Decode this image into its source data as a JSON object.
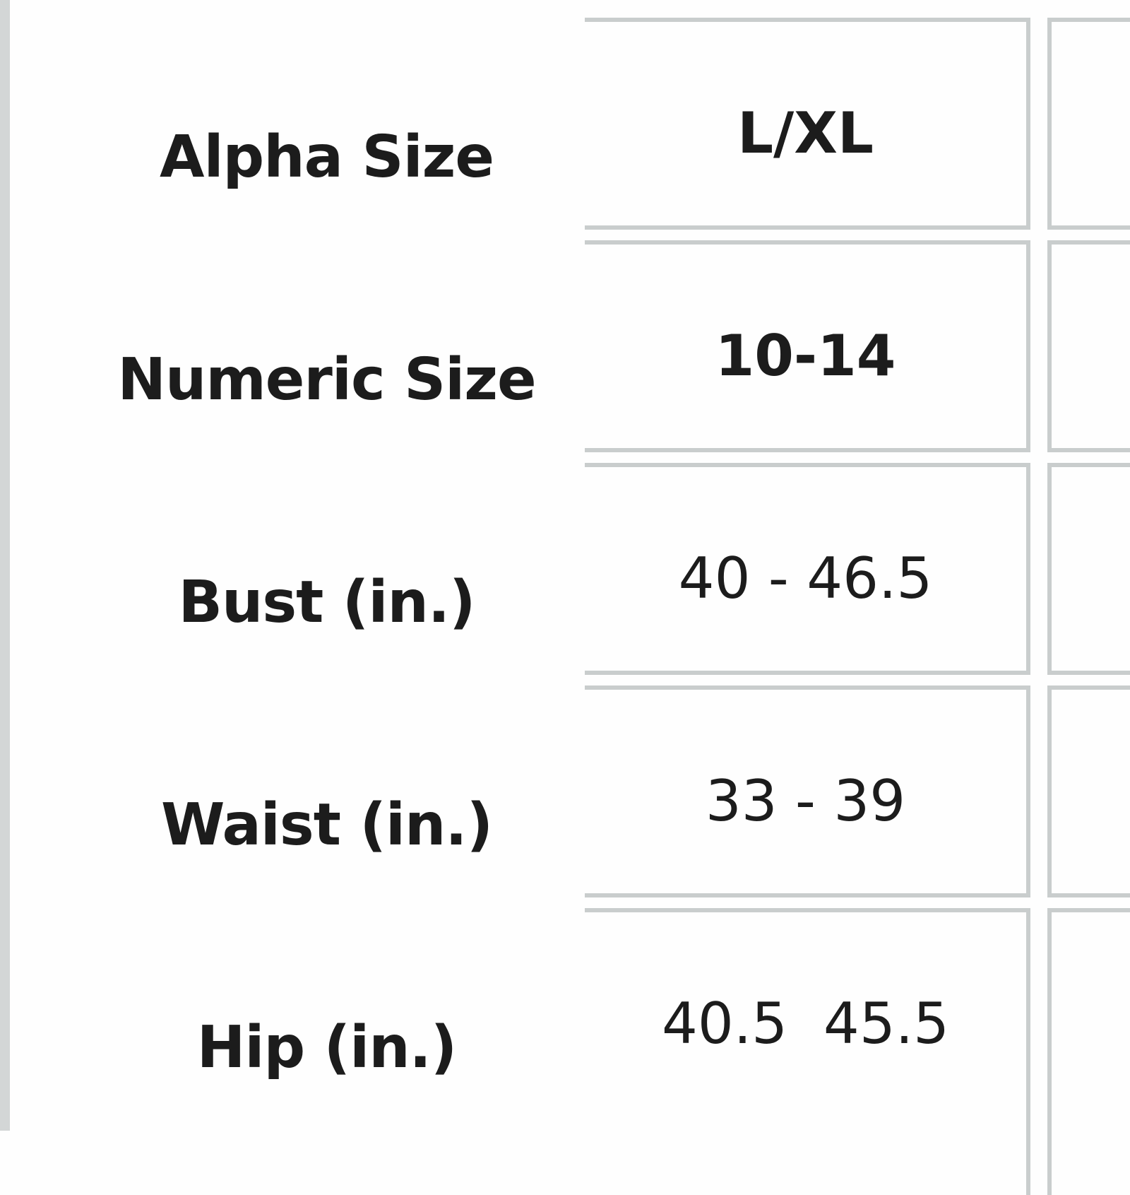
{
  "size_chart": {
    "rows": [
      {
        "label": "Alpha Size",
        "value": "L/XL",
        "bold_value": true
      },
      {
        "label": "Numeric Size",
        "value": "10-14",
        "bold_value": true
      },
      {
        "label": "Bust (in.)",
        "value": "40 - 46.5",
        "bold_value": false
      },
      {
        "label": "Waist (in.)",
        "value": "33 - 39",
        "bold_value": false
      },
      {
        "label": "Hip (in.)",
        "value": "40.5  45.5",
        "bold_value": false
      }
    ]
  },
  "colors": {
    "border": "#c9cdcd",
    "text": "#1c1c1c",
    "background": "#fefefe"
  }
}
